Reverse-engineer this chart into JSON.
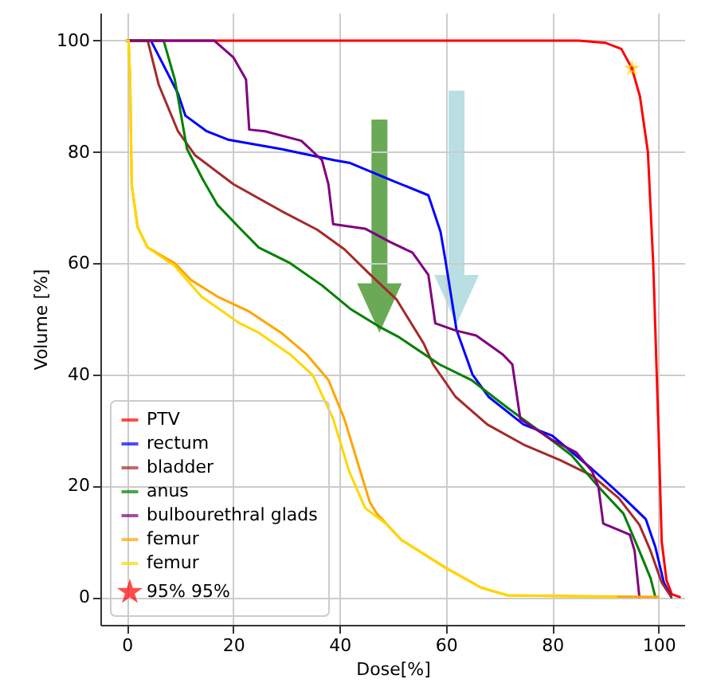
{
  "chart_data": {
    "type": "line",
    "xlabel": "Dose[%]",
    "ylabel": "Volume [%]",
    "xlim": [
      -5,
      105
    ],
    "ylim": [
      -5,
      105
    ],
    "xticks": [
      0,
      20,
      40,
      60,
      80,
      100
    ],
    "yticks": [
      0,
      20,
      40,
      60,
      80,
      100
    ],
    "grid": true,
    "legend": "bottom left",
    "series": [
      {
        "name": "PTV",
        "color": "#ff0000",
        "x": [
          0,
          85,
          90,
          93,
          95,
          96.5,
          98,
          99,
          100,
          100.6,
          101.5,
          102.5,
          104
        ],
        "values": [
          100,
          100,
          99.6,
          98.5,
          95,
          90,
          80,
          60,
          30,
          10,
          3,
          0.5,
          0
        ]
      },
      {
        "name": "rectum",
        "color": "#0000ff",
        "x": [
          4.5,
          9.6,
          11,
          15,
          19,
          29,
          39,
          42,
          50,
          56.7,
          59,
          60,
          62,
          65,
          68,
          74.6,
          80,
          87.5,
          93.5,
          97.6,
          99.4,
          101,
          102.4
        ],
        "values": [
          100,
          90.5,
          86.5,
          83.7,
          82.2,
          80.5,
          78.5,
          78,
          74.8,
          72.2,
          65.6,
          60,
          48,
          40,
          36,
          31,
          29,
          23,
          17.8,
          14,
          9,
          2.6,
          0
        ]
      },
      {
        "name": "bladder",
        "color": "#a52a2a",
        "x": [
          0,
          3.9,
          6,
          9.6,
          12.8,
          20,
          29,
          35.8,
          40.9,
          45.7,
          50.7,
          55.8,
          57.6,
          61.8,
          67.8,
          74.6,
          81.5,
          87.5,
          92.5,
          96.4,
          98.5,
          100.6,
          102.4
        ],
        "values": [
          100,
          100,
          92,
          83.7,
          79.4,
          74.2,
          69.4,
          66,
          62.5,
          58,
          53.5,
          45.6,
          41.8,
          36,
          31,
          27.4,
          24.6,
          21.8,
          17.8,
          13,
          8.3,
          2.6,
          0
        ]
      },
      {
        "name": "anus",
        "color": "#008000",
        "x": [
          0,
          6.9,
          9,
          11.3,
          14.3,
          17,
          21,
          24.8,
          30.7,
          36.7,
          42,
          47.8,
          51,
          58.8,
          64.8,
          71.6,
          78.5,
          83.6,
          88.7,
          93.4,
          96,
          98.5,
          99.4
        ],
        "values": [
          100,
          100,
          93,
          80.5,
          75,
          70.5,
          66.5,
          62.8,
          60,
          56,
          51.8,
          48.4,
          46.8,
          41.8,
          39,
          34,
          29.2,
          25.5,
          19.8,
          15,
          9.2,
          3.4,
          0
        ]
      },
      {
        "name": "bulbourethral glads",
        "color": "#800080",
        "x": [
          0,
          16.4,
          20,
          22.4,
          23,
          26,
          32.8,
          36.7,
          37.9,
          38.8,
          44.8,
          49.5,
          53.7,
          56.7,
          58,
          61.8,
          65.7,
          70.7,
          72.5,
          74,
          79.7,
          84.5,
          87.5,
          88.7,
          89.6,
          94.6,
          95.5,
          96.4
        ],
        "values": [
          100,
          100,
          97,
          93,
          84,
          83.7,
          82,
          78.5,
          74.2,
          67,
          66.2,
          63.8,
          61.9,
          57.9,
          49.2,
          47.9,
          47,
          43.6,
          41.8,
          32,
          28.4,
          26,
          22.6,
          19.8,
          13.2,
          11.2,
          8.3,
          0
        ]
      },
      {
        "name": "femur",
        "color": "#ffa500",
        "x": [
          0,
          0.3,
          0.6,
          0.9,
          2,
          3.9,
          9,
          12,
          17,
          21,
          23,
          29,
          33.8,
          37.9,
          40.9,
          43.9,
          45.7,
          47,
          51.6,
          59.7,
          66.6,
          71.6,
          100
        ],
        "values": [
          100,
          100,
          93,
          74,
          66.5,
          62.8,
          60,
          57,
          54,
          52.2,
          51.3,
          47.5,
          43.6,
          39,
          32,
          22.6,
          17,
          15,
          10.3,
          5.4,
          1.7,
          0.3,
          0
        ]
      },
      {
        "name": "femur",
        "color": "#ffd700",
        "x": [
          0,
          0.3,
          0.6,
          0.9,
          2,
          3.9,
          9,
          14,
          21,
          24.8,
          30.7,
          35,
          38.8,
          41.8,
          44.8,
          48.7,
          51.6,
          59.7,
          66.6,
          71.6,
          92
        ],
        "values": [
          100,
          100,
          93,
          74,
          66.5,
          62.8,
          59.5,
          54,
          49.3,
          47.5,
          43.6,
          39.8,
          32,
          22.6,
          16,
          13.2,
          10.3,
          5.4,
          1.7,
          0.3,
          0
        ]
      },
      {
        "name": "95% 95%",
        "type": "scatter",
        "marker": "star",
        "color": "#ff0000",
        "x": [
          95
        ],
        "values": [
          95
        ]
      }
    ]
  }
}
